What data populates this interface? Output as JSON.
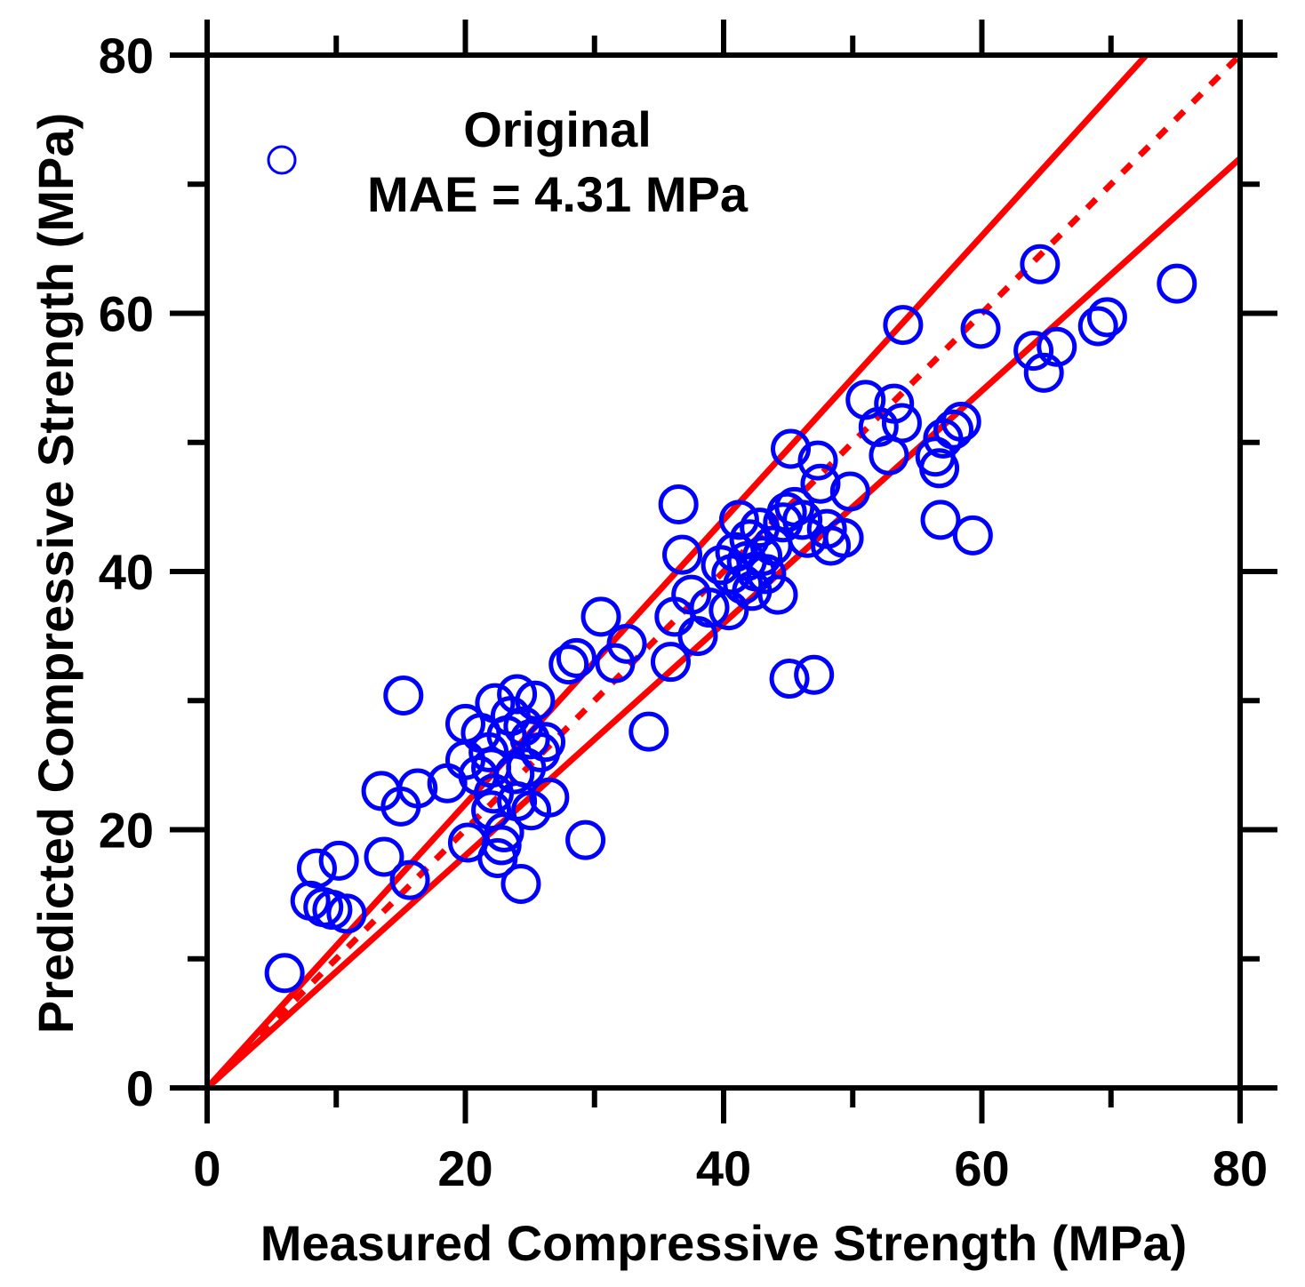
{
  "chart_data": {
    "type": "scatter",
    "xlabel": "Measured Compressive Strength (MPa)",
    "ylabel": "Predicted Compressive Strength (MPa)",
    "xlim": [
      0,
      80
    ],
    "ylim": [
      0,
      80
    ],
    "x_tick_labels": [
      "0",
      "20",
      "40",
      "60",
      "80"
    ],
    "y_tick_labels": [
      "0",
      "20",
      "40",
      "60",
      "80"
    ],
    "x_ticks": [
      0,
      10,
      20,
      30,
      40,
      50,
      60,
      70,
      80
    ],
    "y_ticks": [
      0,
      10,
      20,
      30,
      40,
      50,
      60,
      70,
      80
    ],
    "legend": {
      "series_name": "Original",
      "metric": "MAE = 4.31 MPa",
      "position": "top-left"
    },
    "colors": {
      "points": "#0000ff",
      "lines": "#ff0000",
      "axes": "#000000"
    },
    "reference_lines": [
      {
        "name": "identity",
        "style": "dotted",
        "slope": 1.0
      },
      {
        "name": "upper-bound",
        "style": "solid",
        "slope": 1.1
      },
      {
        "name": "lower-bound",
        "style": "solid",
        "slope": 0.9
      }
    ],
    "series": [
      {
        "name": "Original",
        "points": [
          [
            6.0,
            8.9
          ],
          [
            8.0,
            14.5
          ],
          [
            8.5,
            17.0
          ],
          [
            9.0,
            14.0
          ],
          [
            9.7,
            13.8
          ],
          [
            10.2,
            17.6
          ],
          [
            10.8,
            13.5
          ],
          [
            13.5,
            23.0
          ],
          [
            13.7,
            17.9
          ],
          [
            15.0,
            21.8
          ],
          [
            15.2,
            30.4
          ],
          [
            15.7,
            16.1
          ],
          [
            16.3,
            23.2
          ],
          [
            18.6,
            23.6
          ],
          [
            20.0,
            28.2
          ],
          [
            20.0,
            25.4
          ],
          [
            20.2,
            19.0
          ],
          [
            21.0,
            24.2
          ],
          [
            21.2,
            27.5
          ],
          [
            21.8,
            26.0
          ],
          [
            22.0,
            24.8
          ],
          [
            22.0,
            21.5
          ],
          [
            22.2,
            22.8
          ],
          [
            22.3,
            29.8
          ],
          [
            22.5,
            17.8
          ],
          [
            22.8,
            18.8
          ],
          [
            23.0,
            19.8
          ],
          [
            23.2,
            27.3
          ],
          [
            23.5,
            28.8
          ],
          [
            23.8,
            24.3
          ],
          [
            24.0,
            30.5
          ],
          [
            24.0,
            22.2
          ],
          [
            24.3,
            15.8
          ],
          [
            24.5,
            28.0
          ],
          [
            24.7,
            24.8
          ],
          [
            25.0,
            27.0
          ],
          [
            25.1,
            21.5
          ],
          [
            25.4,
            30.0
          ],
          [
            25.8,
            26.0
          ],
          [
            26.2,
            26.8
          ],
          [
            26.5,
            22.5
          ],
          [
            28.0,
            32.8
          ],
          [
            28.6,
            33.3
          ],
          [
            29.3,
            19.2
          ],
          [
            30.5,
            36.5
          ],
          [
            31.6,
            32.9
          ],
          [
            32.5,
            34.4
          ],
          [
            34.2,
            27.6
          ],
          [
            35.9,
            33.0
          ],
          [
            36.2,
            36.5
          ],
          [
            36.5,
            45.2
          ],
          [
            36.8,
            41.3
          ],
          [
            37.5,
            38.2
          ],
          [
            38.0,
            35.0
          ],
          [
            38.9,
            37.2
          ],
          [
            39.8,
            40.5
          ],
          [
            40.4,
            37.0
          ],
          [
            40.6,
            39.8
          ],
          [
            40.9,
            41.5
          ],
          [
            41.2,
            44.0
          ],
          [
            41.5,
            39.0
          ],
          [
            41.8,
            40.8
          ],
          [
            42.0,
            42.5
          ],
          [
            42.2,
            38.5
          ],
          [
            42.5,
            40.0
          ],
          [
            42.8,
            43.4
          ],
          [
            43.0,
            41.2
          ],
          [
            43.3,
            39.8
          ],
          [
            43.8,
            42.0
          ],
          [
            44.2,
            38.2
          ],
          [
            44.6,
            43.8
          ],
          [
            44.9,
            44.6
          ],
          [
            45.1,
            31.7
          ],
          [
            45.2,
            49.5
          ],
          [
            45.5,
            45.0
          ],
          [
            46.1,
            44.0
          ],
          [
            46.5,
            42.6
          ],
          [
            47.0,
            32.0
          ],
          [
            47.3,
            48.6
          ],
          [
            47.5,
            46.8
          ],
          [
            48.0,
            43.3
          ],
          [
            48.3,
            42.0
          ],
          [
            49.3,
            42.6
          ],
          [
            49.8,
            46.2
          ],
          [
            51.0,
            53.3
          ],
          [
            52.0,
            51.2
          ],
          [
            52.8,
            49.0
          ],
          [
            53.2,
            53.0
          ],
          [
            53.8,
            51.5
          ],
          [
            53.9,
            59.1
          ],
          [
            56.4,
            48.9
          ],
          [
            56.8,
            44.0
          ],
          [
            56.7,
            48.0
          ],
          [
            57.0,
            50.3
          ],
          [
            57.8,
            51.0
          ],
          [
            58.4,
            51.6
          ],
          [
            59.3,
            42.8
          ],
          [
            59.9,
            58.8
          ],
          [
            64.0,
            57.1
          ],
          [
            64.5,
            63.8
          ],
          [
            64.8,
            55.4
          ],
          [
            65.8,
            57.4
          ],
          [
            69.0,
            59.0
          ],
          [
            69.7,
            59.7
          ],
          [
            75.1,
            62.3
          ]
        ]
      }
    ]
  }
}
